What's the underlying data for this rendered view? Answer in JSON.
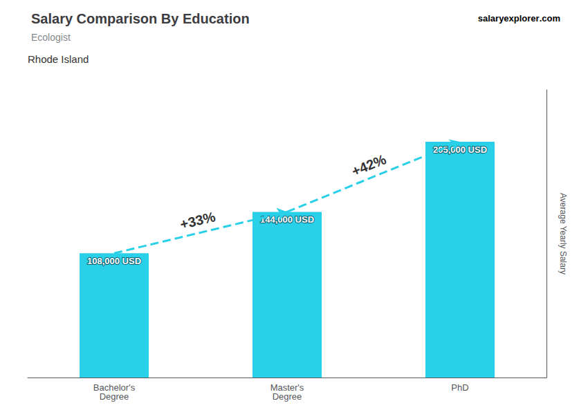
{
  "chart_data": {
    "type": "bar",
    "title": "Salary Comparison By Education",
    "subtitle": "Ecologist",
    "ylabel": "Average Yearly Salary",
    "categories": [
      "Bachelor's\nDegree",
      "Master's\nDegree",
      "PhD"
    ],
    "values": [
      108000,
      144000,
      205000
    ],
    "value_labels": [
      "108,000 USD",
      "144,000 USD",
      "205,000 USD"
    ],
    "data_labels": true,
    "color": "#29d0e8",
    "ylim": [
      0,
      250000
    ],
    "grid": false,
    "tick_labels": "x",
    "annotations": [
      {
        "text": "Rhode Island"
      },
      {
        "text": "salary"
      },
      {
        "text": "explorer"
      },
      {
        "text": ".com"
      },
      {
        "text": "+33%",
        "from": "Bachelor's\nDegree",
        "to": "Master's\nDegree"
      },
      {
        "text": "+42%",
        "from": "Master's\nDegree",
        "to": "PhD"
      }
    ]
  }
}
